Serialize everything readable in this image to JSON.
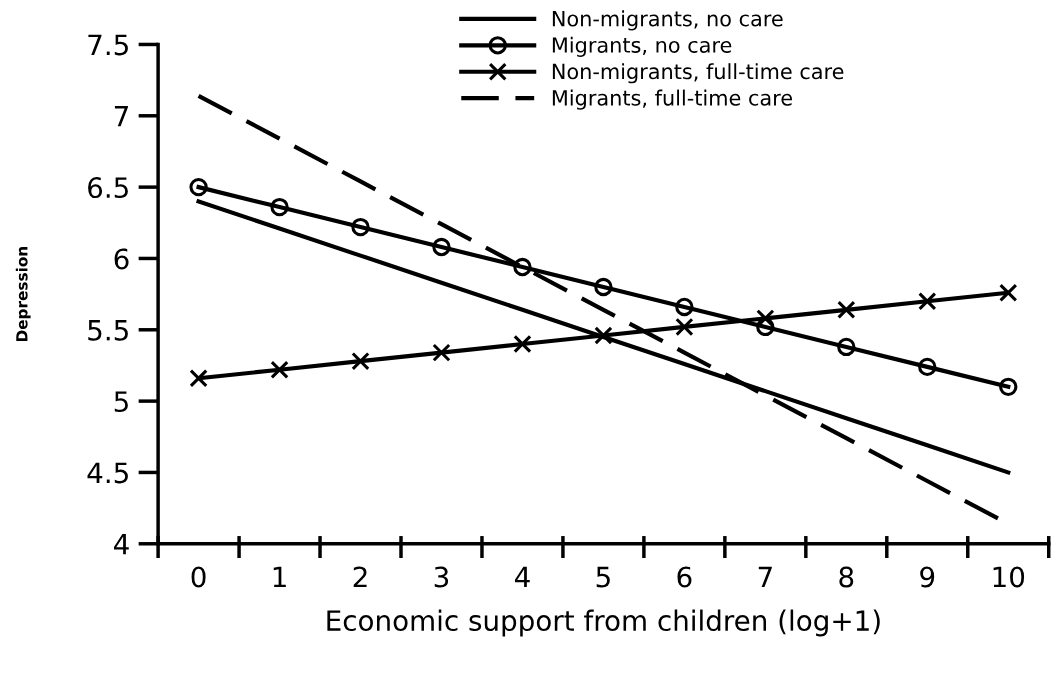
{
  "chart_data": {
    "type": "line",
    "xlabel": "Economic support from children (log+1)",
    "ylabel": "Depression",
    "categories": [
      "0",
      "1",
      "2",
      "3",
      "4",
      "5",
      "6",
      "7",
      "8",
      "9",
      "10"
    ],
    "ylim": [
      4,
      7.5
    ],
    "yticks": [
      4,
      {
        "value": 4.5,
        "label": "4.5"
      },
      5,
      {
        "value": 5.5,
        "label": "5.5"
      },
      6,
      {
        "value": 6.5,
        "label": "6.5"
      },
      7,
      {
        "value": 7.5,
        "label": "7.5"
      }
    ],
    "grid": false,
    "legend": "top right",
    "series": [
      {
        "name": "Non-migrants, no care",
        "color": "#000000",
        "marker": "none",
        "line_style": "solid",
        "values": [
          6.4,
          6.21,
          6.02,
          5.83,
          5.64,
          5.45,
          5.26,
          5.07,
          4.88,
          4.69,
          4.5
        ]
      },
      {
        "name": "Migrants, no care",
        "color": "#000000",
        "marker": "circle",
        "line_style": "solid",
        "values": [
          6.5,
          6.36,
          6.22,
          6.08,
          5.94,
          5.8,
          5.66,
          5.52,
          5.38,
          5.24,
          5.1
        ]
      },
      {
        "name": "Non-migrants, full-time care",
        "color": "#000000",
        "marker": "cross",
        "line_style": "solid",
        "values": [
          5.16,
          5.22,
          5.28,
          5.34,
          5.4,
          5.46,
          5.52,
          5.58,
          5.64,
          5.7,
          5.76
        ]
      },
      {
        "name": "Migrants, full-time care",
        "color": "#000000",
        "marker": "none",
        "line_style": "dashed",
        "values": [
          7.14,
          6.84,
          6.54,
          6.24,
          5.94,
          5.64,
          5.34,
          5.04,
          4.74,
          4.44,
          4.14
        ]
      }
    ]
  }
}
